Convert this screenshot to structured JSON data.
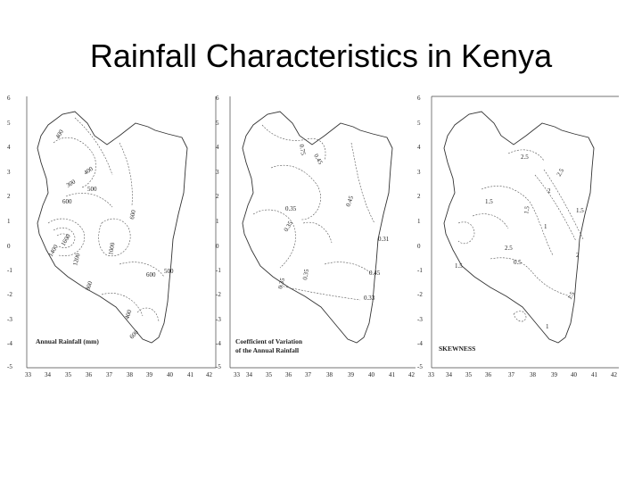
{
  "slide": {
    "title": "Rainfall Characteristics in Kenya"
  },
  "y_ticks": [
    "6",
    "5",
    "4",
    "3",
    "2",
    "1",
    "0",
    "-1",
    "-2",
    "-3",
    "-4",
    "-5"
  ],
  "panels": [
    {
      "caption_lines": [
        "Annual Rainfall (mm)"
      ],
      "x_ticks": [
        "33",
        "34",
        "35",
        "36",
        "37",
        "38",
        "39",
        "40",
        "41",
        "42"
      ],
      "contour_labels": [
        "400",
        "400",
        "300",
        "500",
        "600",
        "600",
        "1000",
        "1200",
        "1400",
        "1600",
        "500",
        "600",
        "800",
        "400",
        "600"
      ]
    },
    {
      "caption_lines": [
        "Coefficient of Variation",
        "of the Annual Rainfall"
      ],
      "x_ticks": [
        "33",
        "34",
        "35",
        "36",
        "37",
        "38",
        "39",
        "40",
        "41",
        "42"
      ],
      "contour_labels": [
        "0.75",
        "0.45",
        "0.45",
        "0.35",
        "0.35",
        "0.31",
        "0.35",
        "0.35",
        "0.45",
        "0.33"
      ]
    },
    {
      "caption_lines": [
        "SKEWNESS"
      ],
      "x_ticks": [
        "33",
        "34",
        "35",
        "36",
        "37",
        "38",
        "39",
        "40",
        "41",
        "42"
      ],
      "contour_labels": [
        "2.5",
        "2.5",
        "2",
        "1.5",
        "1.5",
        "1.5",
        "1",
        "2.5",
        "1.5",
        "0.5",
        "2",
        "1.5",
        "1"
      ]
    }
  ]
}
